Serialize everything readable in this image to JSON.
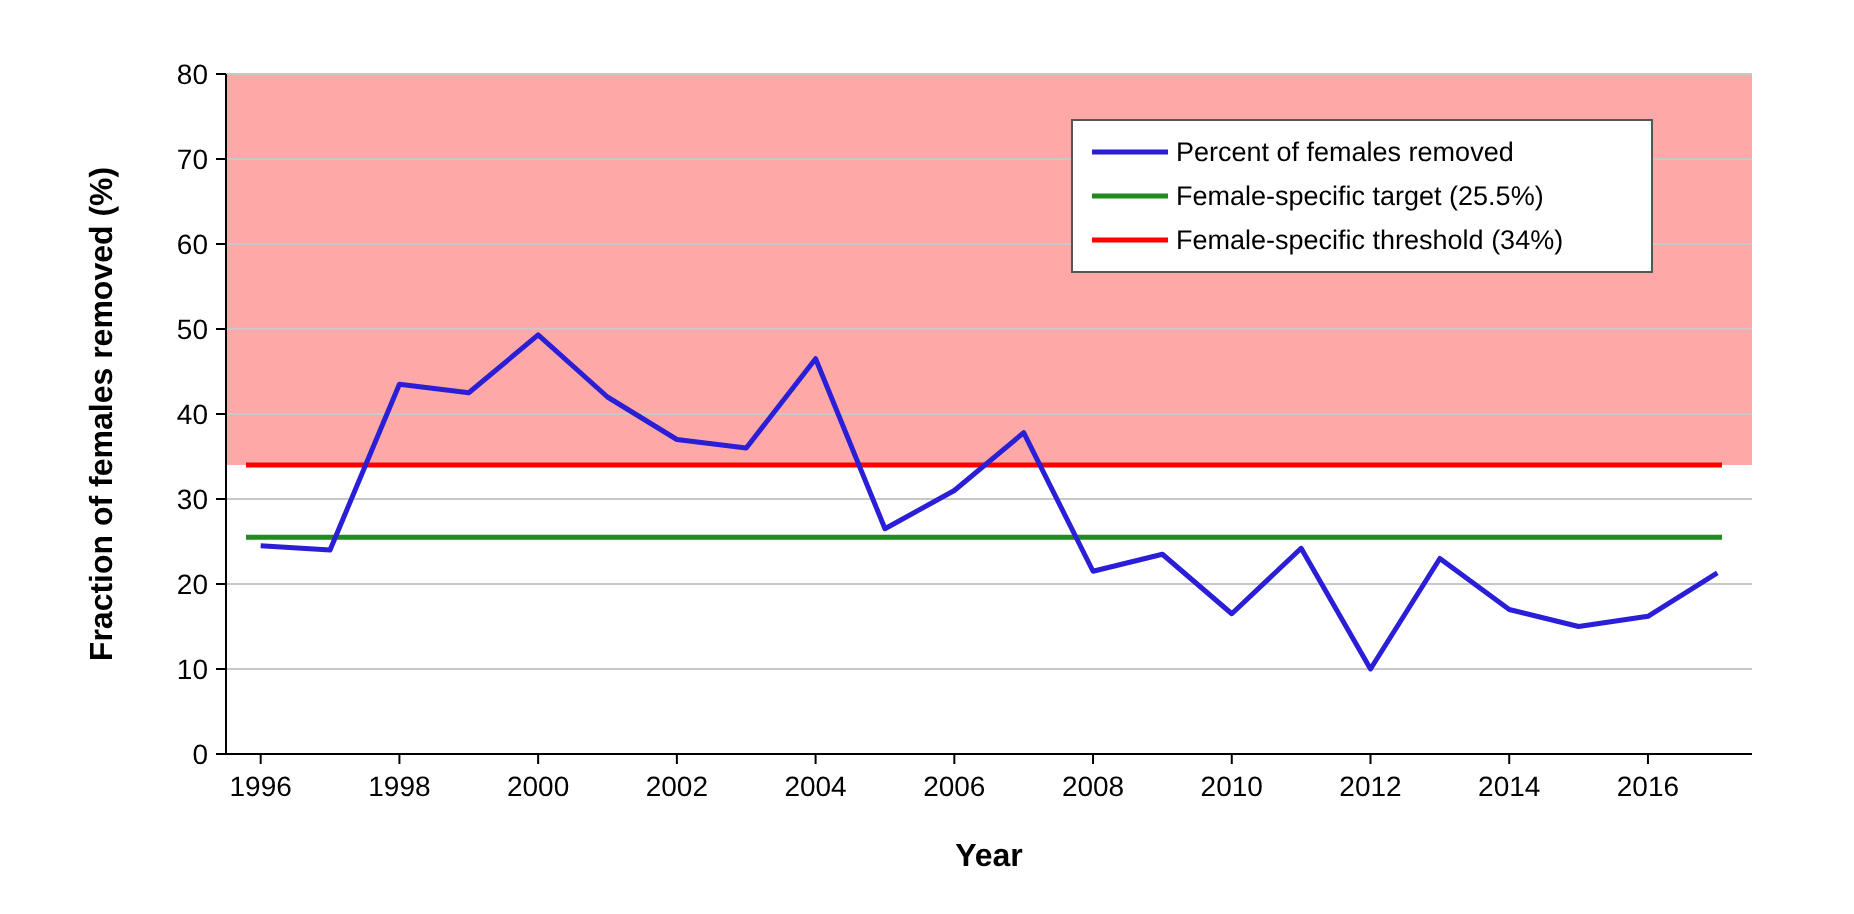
{
  "chart_data": {
    "type": "line",
    "xlabel": "Year",
    "ylabel": "Fraction of females removed (%)",
    "categories": [
      "1996",
      null,
      "1998",
      null,
      "2000",
      null,
      "2002",
      null,
      "2004",
      null,
      "2006",
      null,
      "2008",
      null,
      "2010",
      null,
      "2012",
      null,
      "2014",
      null,
      "2016",
      null
    ],
    "series": [
      {
        "name": "Percent of females removed",
        "color": "#2a1fd6",
        "values": [
          24.5,
          24,
          43.5,
          42.5,
          49.3,
          42,
          37,
          36,
          46.5,
          26.5,
          31,
          37.8,
          21.5,
          23.5,
          16.5,
          24.2,
          10,
          23,
          17,
          15,
          16.2,
          21.3
        ]
      }
    ],
    "ylim": [
      0,
      80
    ],
    "yticks": [
      0,
      10,
      20,
      30,
      40,
      50,
      60,
      70,
      80
    ],
    "grid": "y",
    "legend": "top right",
    "marker": "none",
    "line_style": "solid",
    "ref_lines": [
      {
        "axis": "y",
        "value": 25.5,
        "label": "Female-specific target (25.5%)",
        "color": "#1f8a1f"
      },
      {
        "axis": "y",
        "value": 34,
        "label": "Female-specific threshold (34%)",
        "color": "#ff0000"
      }
    ],
    "bands": [
      {
        "axis": "y",
        "from": 34,
        "to": 80,
        "color": "#ffa8a8"
      }
    ]
  }
}
